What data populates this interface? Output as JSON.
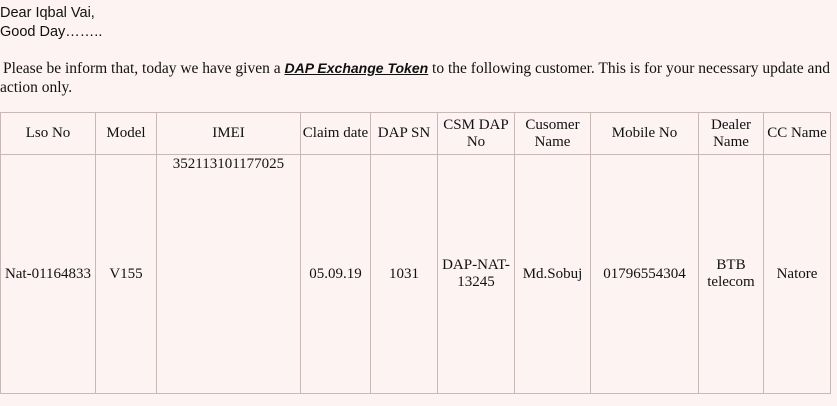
{
  "greeting": {
    "line1": "Dear Iqbal Vai,",
    "line2": "Good Day…….."
  },
  "intro": {
    "before": "Please be inform that, today we have given a ",
    "token": "DAP Exchange Token",
    "after": " to the following customer. This is for your necessary update and action only."
  },
  "table": {
    "headers": {
      "lso": "Lso No",
      "model": "Model",
      "imei": "IMEI",
      "claim_date": "Claim date",
      "dap_sn": "DAP SN",
      "csm_dap": "CSM DAP No",
      "customer": "Cusomer Name",
      "mobile": "Mobile No",
      "dealer": "Dealer Name",
      "cc": "CC Name"
    },
    "row": {
      "lso": "Nat-01164833",
      "model": "V155",
      "imei": "352113101177025",
      "claim_date": "05.09.19",
      "dap_sn": "1031",
      "csm_dap": "DAP-NAT-13245",
      "customer": "Md.Sobuj",
      "mobile": "01796554304",
      "dealer": "BTB telecom",
      "cc": "Natore"
    }
  }
}
